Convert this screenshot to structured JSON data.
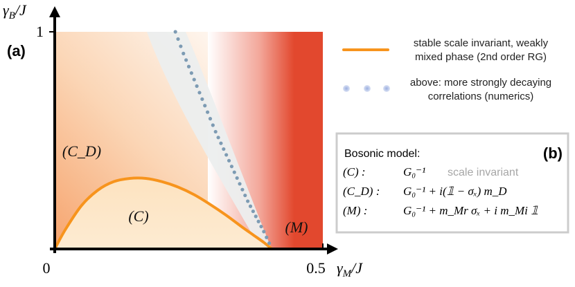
{
  "panel_a": {
    "label": "(a)",
    "axes": {
      "x": {
        "label": "γ_M / J",
        "min": 0,
        "max": 0.5,
        "tick_labels": [
          "0",
          "0.5"
        ]
      },
      "y": {
        "label": "γ_B / J",
        "min": 0,
        "max": 1,
        "tick_labels": [
          "1"
        ]
      }
    },
    "region_labels": {
      "C": "(C)",
      "C_D": "(C_D)",
      "M": "(M)"
    },
    "colors": {
      "boundary": "#f7941d",
      "dots": "#7d9bb3",
      "C_fill": "#fde9cc",
      "C_D_fill": "#f6a46e",
      "M_fill": "#e2482e",
      "gap_fill": "#eceeee"
    }
  },
  "legend": {
    "line_label": [
      "stable scale invariant, weakly",
      "mixed phase (2nd order RG)"
    ],
    "dots_label": [
      "above: more strongly decaying",
      "correlations (numerics)"
    ],
    "line_color": "#f7941d",
    "dots_color": "#9aaee0"
  },
  "panel_b": {
    "label": "(b)",
    "title": "Bosonic model:",
    "rows": [
      {
        "name": "(C) :",
        "expr": "G₀⁻¹",
        "note": "scale invariant"
      },
      {
        "name": "(C_D) :",
        "expr": "G₀⁻¹ + i(𝟙 − σₓ) m_D",
        "note": ""
      },
      {
        "name": "(M) :",
        "expr": "G₀⁻¹ + m_Mr σₓ + i m_Mi 𝟙",
        "note": ""
      }
    ]
  },
  "chart_data": {
    "type": "area",
    "title": "",
    "xlabel": "γ_M / J",
    "ylabel": "γ_B / J",
    "xlim": [
      0,
      0.5
    ],
    "ylim": [
      0,
      1
    ],
    "grid": false,
    "legend_position": "top-right",
    "series": [
      {
        "name": "stable scale invariant, weakly mixed phase (2nd order RG)",
        "kind": "line",
        "x": [
          0.0,
          0.02,
          0.05,
          0.08,
          0.11,
          0.14,
          0.17,
          0.2,
          0.23,
          0.26,
          0.29,
          0.32,
          0.35,
          0.37,
          0.39,
          0.405
        ],
        "y": [
          0.0,
          0.09,
          0.2,
          0.27,
          0.31,
          0.325,
          0.325,
          0.31,
          0.285,
          0.25,
          0.205,
          0.155,
          0.1,
          0.065,
          0.03,
          0.0
        ]
      },
      {
        "name": "above: more strongly decaying correlations (numerics)",
        "kind": "dots",
        "x": [
          0.225,
          0.24,
          0.255,
          0.27,
          0.285,
          0.3,
          0.315,
          0.33,
          0.345,
          0.36,
          0.375,
          0.39,
          0.405
        ],
        "y": [
          1.0,
          0.9,
          0.81,
          0.72,
          0.63,
          0.54,
          0.46,
          0.38,
          0.3,
          0.22,
          0.15,
          0.08,
          0.0
        ]
      }
    ],
    "regions": [
      "(C)",
      "(C_D)",
      "(M)"
    ]
  }
}
